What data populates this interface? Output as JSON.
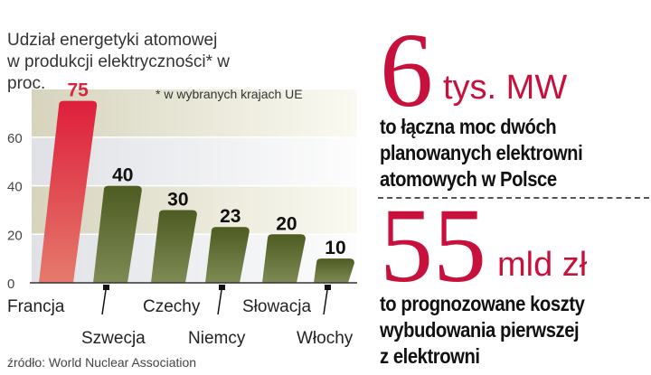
{
  "chart_data": {
    "type": "bar",
    "title": "Udział energetyki atomowej w produkcji elektryczności* w proc.",
    "note": "* w wybranych krajach UE",
    "source": "źródło: World Nuclear Association",
    "categories": [
      "Francja",
      "Szwecja",
      "Czechy",
      "Niemcy",
      "Słowacja",
      "Włochy"
    ],
    "values": [
      75,
      40,
      30,
      23,
      20,
      10
    ],
    "yticks": [
      0,
      20,
      40,
      60
    ],
    "ylim": [
      0,
      80
    ],
    "highlight": "Francja",
    "colors": {
      "highlight": "#d9263e",
      "bar": "#5b6a2c"
    }
  },
  "facts": [
    {
      "number": "6",
      "unit": "tys. MW",
      "text": [
        "to łączna moc dwóch",
        "planowanych elektrowni",
        "atomowych w Polsce"
      ]
    },
    {
      "number": "55",
      "unit": "mld zł",
      "text": [
        "to prognozowane koszty",
        "wybudowania pierwszej",
        "z elektrowni"
      ]
    }
  ],
  "colors": {
    "accent": "#c8103c"
  }
}
